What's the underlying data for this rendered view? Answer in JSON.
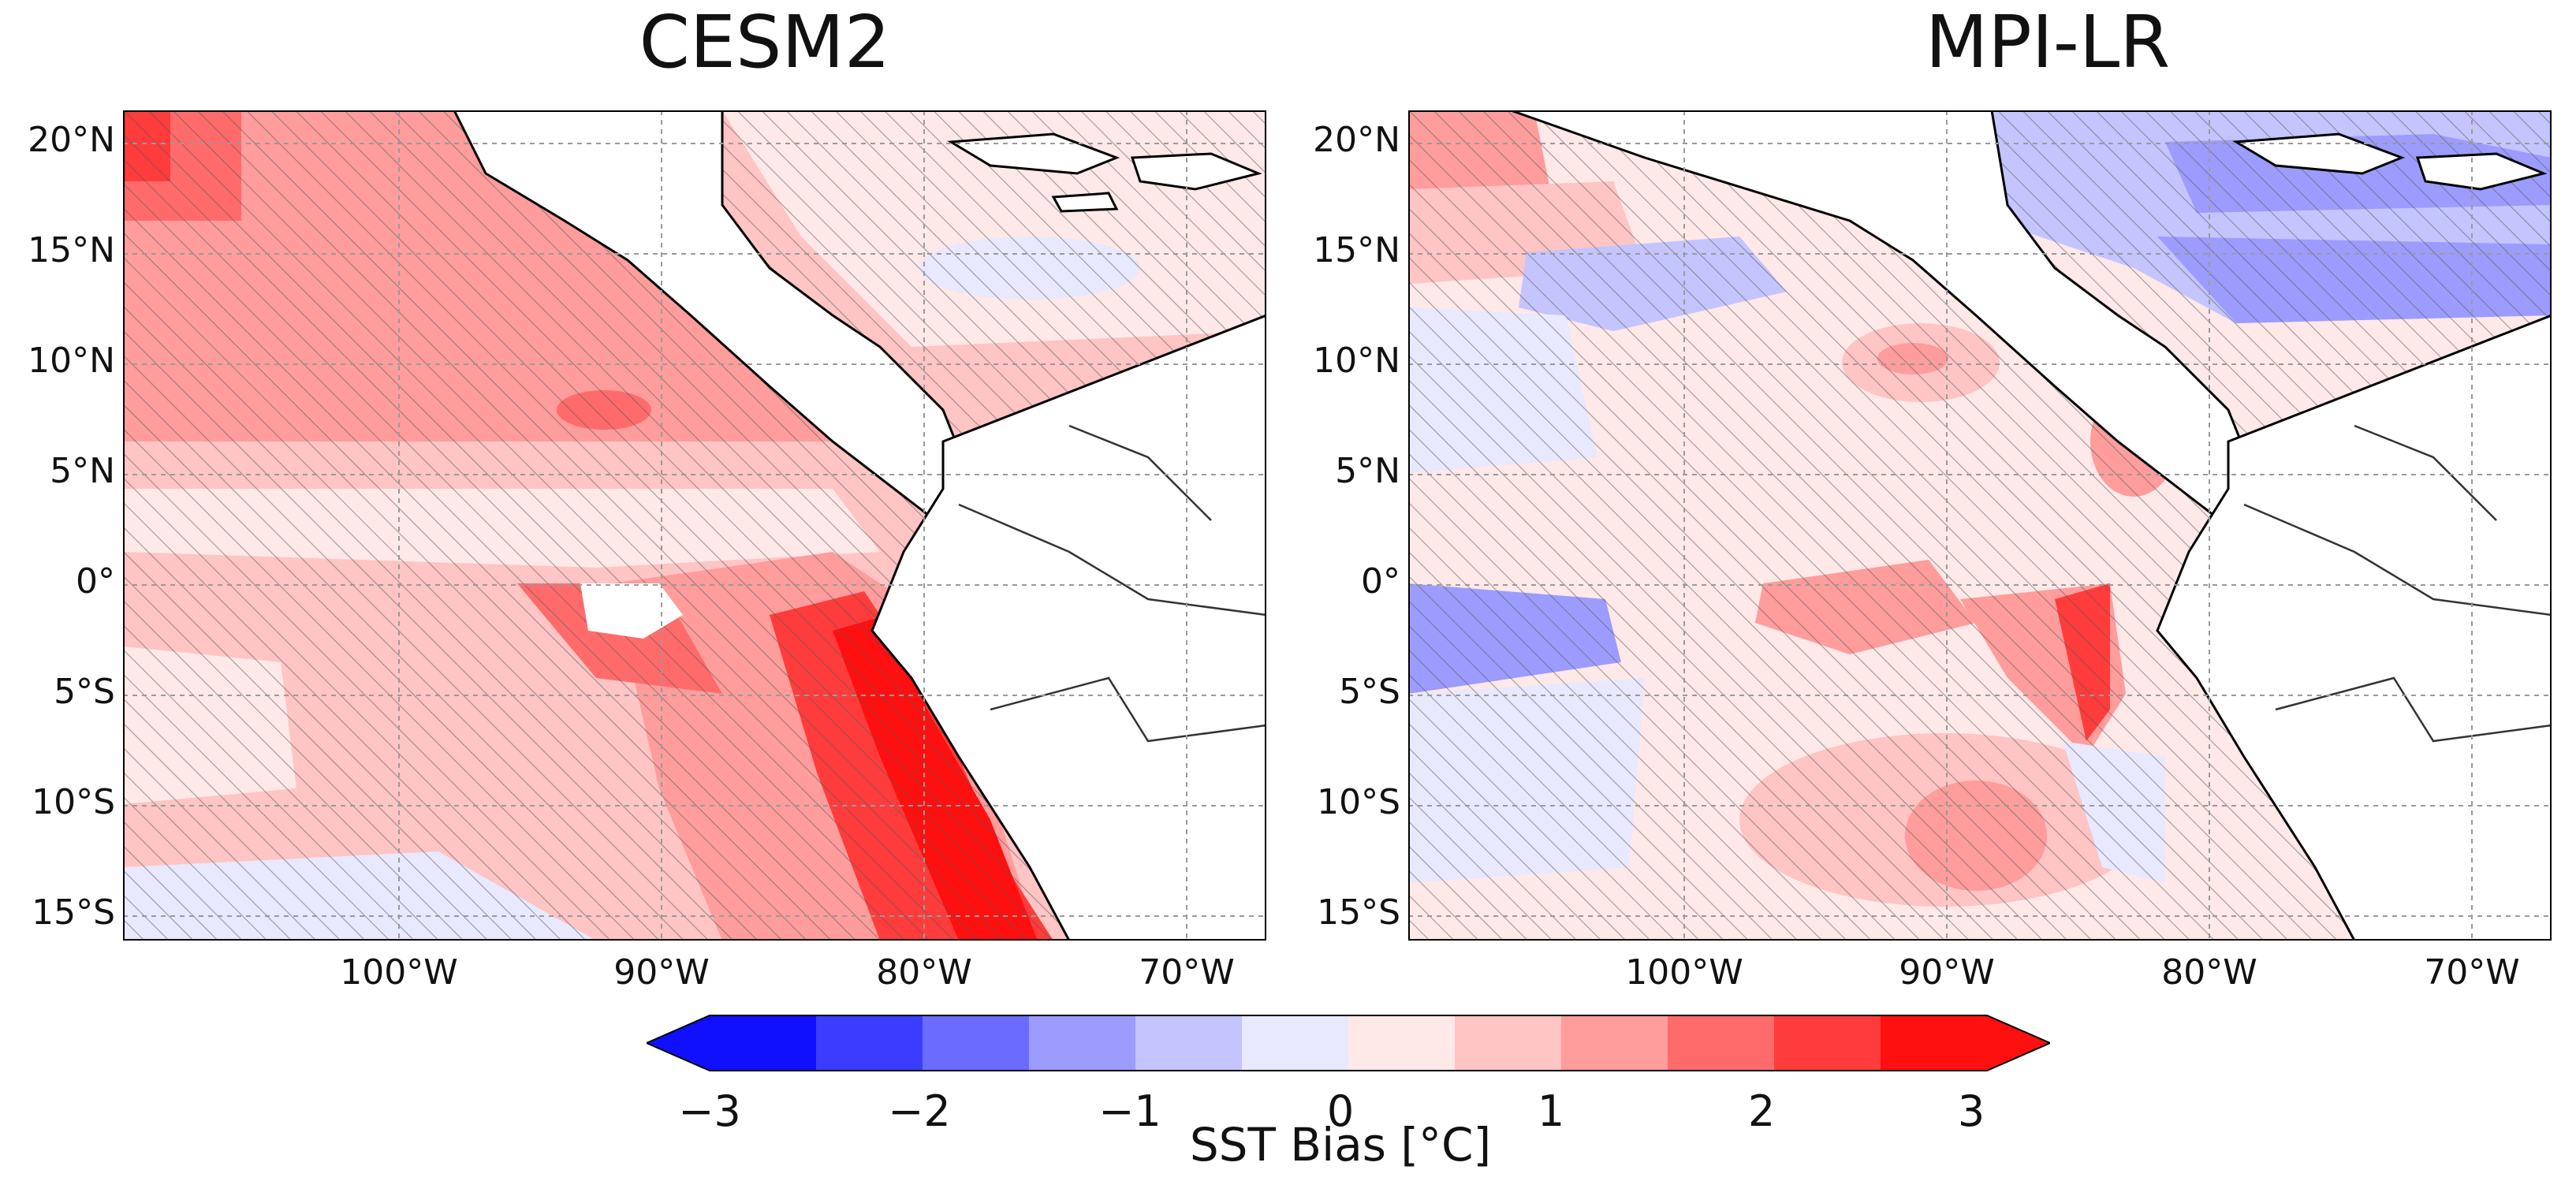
{
  "panels": [
    {
      "title": "CESM2"
    },
    {
      "title": "MPI-LR"
    }
  ],
  "latitude_labels": [
    "20°N",
    "15°N",
    "10°N",
    "5°N",
    "0°",
    "5°S",
    "10°S",
    "15°S"
  ],
  "longitude_labels": [
    "100°W",
    "90°W",
    "80°W",
    "70°W"
  ],
  "colorbar": {
    "label": "SST Bias [°C]",
    "ticks": [
      "−3",
      "−2",
      "−1",
      "0",
      "1",
      "2",
      "3"
    ],
    "levels": [
      -3,
      -2.5,
      -2,
      -1.5,
      -1,
      -0.5,
      0,
      0.5,
      1,
      1.5,
      2,
      2.5,
      3
    ],
    "colors": [
      "#1010ff",
      "#3c3cff",
      "#6b6bff",
      "#9c9cff",
      "#c4c4ff",
      "#e8e8ff",
      "#ffe8e8",
      "#ffc4c4",
      "#ff9c9c",
      "#ff6b6b",
      "#ff3c3c",
      "#ff1010"
    ],
    "extend": "both"
  },
  "colors": {
    "land": "#ffffff",
    "coast": "#000000",
    "grid": "#9a9a9a",
    "hatch": "#555555"
  }
}
